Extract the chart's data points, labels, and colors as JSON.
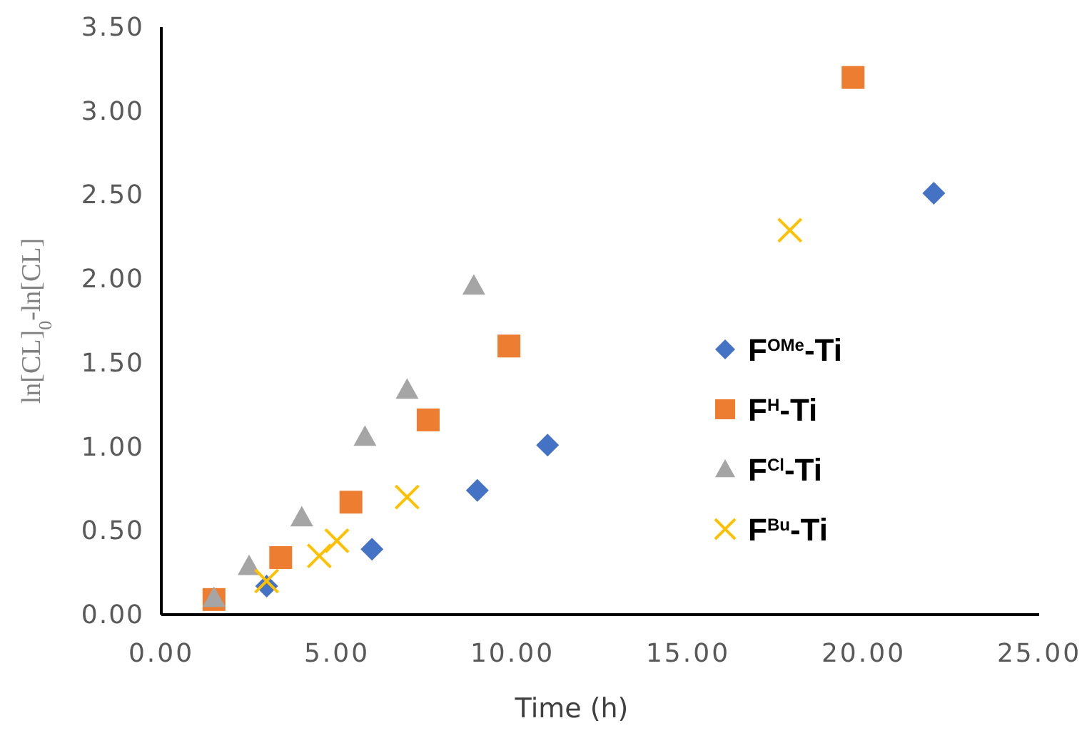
{
  "chart_data": {
    "type": "scatter",
    "xlabel": "Time (h)",
    "ylabel": "ln[CL]$_{0}$-ln[CL]",
    "xlim": [
      0,
      25
    ],
    "xticks": [
      {
        "value": 0,
        "label": "0.00"
      },
      {
        "value": 5,
        "label": "5.00"
      },
      {
        "value": 10,
        "label": "10.00"
      },
      {
        "value": 15,
        "label": "15.00"
      },
      {
        "value": 20,
        "label": "20.00"
      },
      {
        "value": 25,
        "label": "25.00"
      }
    ],
    "ylim": [
      0,
      3.5
    ],
    "yticks": [
      {
        "value": 0,
        "label": "0.00"
      },
      {
        "value": 0.5,
        "label": "0.50"
      },
      {
        "value": 1,
        "label": "1.00"
      },
      {
        "value": 1.5,
        "label": "1.50"
      },
      {
        "value": 2,
        "label": "2.00"
      },
      {
        "value": 2.5,
        "label": "2.50"
      },
      {
        "value": 3,
        "label": "3.00"
      },
      {
        "value": 3.5,
        "label": "3.50"
      }
    ],
    "grid": false,
    "legend": "right",
    "series": [
      {
        "name": "F$^{OMe}$-Ti",
        "color": "#4472c4",
        "marker": "diamond",
        "x": [
          3.0,
          6.0,
          9.0,
          11.0,
          22.0
        ],
        "values": [
          0.17,
          0.39,
          0.74,
          1.01,
          2.51
        ]
      },
      {
        "name": "F$^{H}$-Ti",
        "color": "#ed7d31",
        "marker": "square",
        "x": [
          1.5,
          3.4,
          5.4,
          7.6,
          9.9,
          19.7
        ],
        "values": [
          0.09,
          0.34,
          0.67,
          1.16,
          1.6,
          3.2
        ]
      },
      {
        "name": "F$^{Cl}$-Ti",
        "color": "#a5a5a5",
        "marker": "triangle",
        "x": [
          1.5,
          2.5,
          4.0,
          5.8,
          7.0,
          8.9
        ],
        "values": [
          0.1,
          0.29,
          0.58,
          1.06,
          1.34,
          1.96
        ]
      },
      {
        "name": "F$^{Bu}$-Ti",
        "color": "#ffc000",
        "marker": "cross",
        "x": [
          3.0,
          4.5,
          5.0,
          7.0,
          17.9
        ],
        "values": [
          0.2,
          0.35,
          0.44,
          0.7,
          2.29
        ]
      }
    ]
  }
}
